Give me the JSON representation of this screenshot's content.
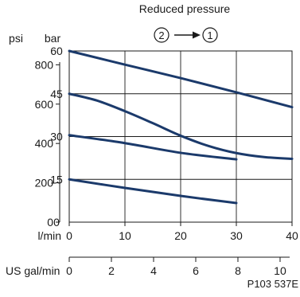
{
  "chart_data": {
    "type": "line",
    "title": "Reduced pressure",
    "flow_annotation": {
      "from": "2",
      "to": "1"
    },
    "x_axis": {
      "label": "l/min",
      "range": [
        0,
        40
      ],
      "ticks": [
        "0",
        "10",
        "20",
        "30",
        "40"
      ]
    },
    "x2_axis": {
      "label": "US gal/min",
      "range": [
        0,
        10.567
      ],
      "ticks": [
        "0",
        "2",
        "4",
        "6",
        "8",
        "10"
      ]
    },
    "y_axis": {
      "label": "bar",
      "range": [
        0,
        60
      ],
      "ticks": [
        "0",
        "15",
        "30",
        "45",
        "60"
      ]
    },
    "y2_axis": {
      "label": "psi",
      "range": [
        0,
        870.2
      ],
      "ticks": [
        "0",
        "200",
        "400",
        "600",
        "800"
      ]
    },
    "grid": true,
    "series_color": "#1b3a6b",
    "series": [
      {
        "x": [
          0,
          10,
          20,
          30,
          40
        ],
        "y": [
          60,
          55.2,
          50.5,
          45.5,
          40.3
        ]
      },
      {
        "x": [
          0,
          5,
          10,
          15,
          20,
          25,
          30,
          35,
          40
        ],
        "y": [
          45,
          42.6,
          38.9,
          34.7,
          30.3,
          26.7,
          24.2,
          22.8,
          22.2
        ]
      },
      {
        "x": [
          0,
          10,
          20,
          30
        ],
        "y": [
          30.5,
          27.7,
          24.3,
          22
        ]
      },
      {
        "x": [
          0,
          10,
          20,
          30
        ],
        "y": [
          15,
          12,
          9.2,
          6.7
        ]
      }
    ],
    "footer_code": "P103 537E"
  }
}
